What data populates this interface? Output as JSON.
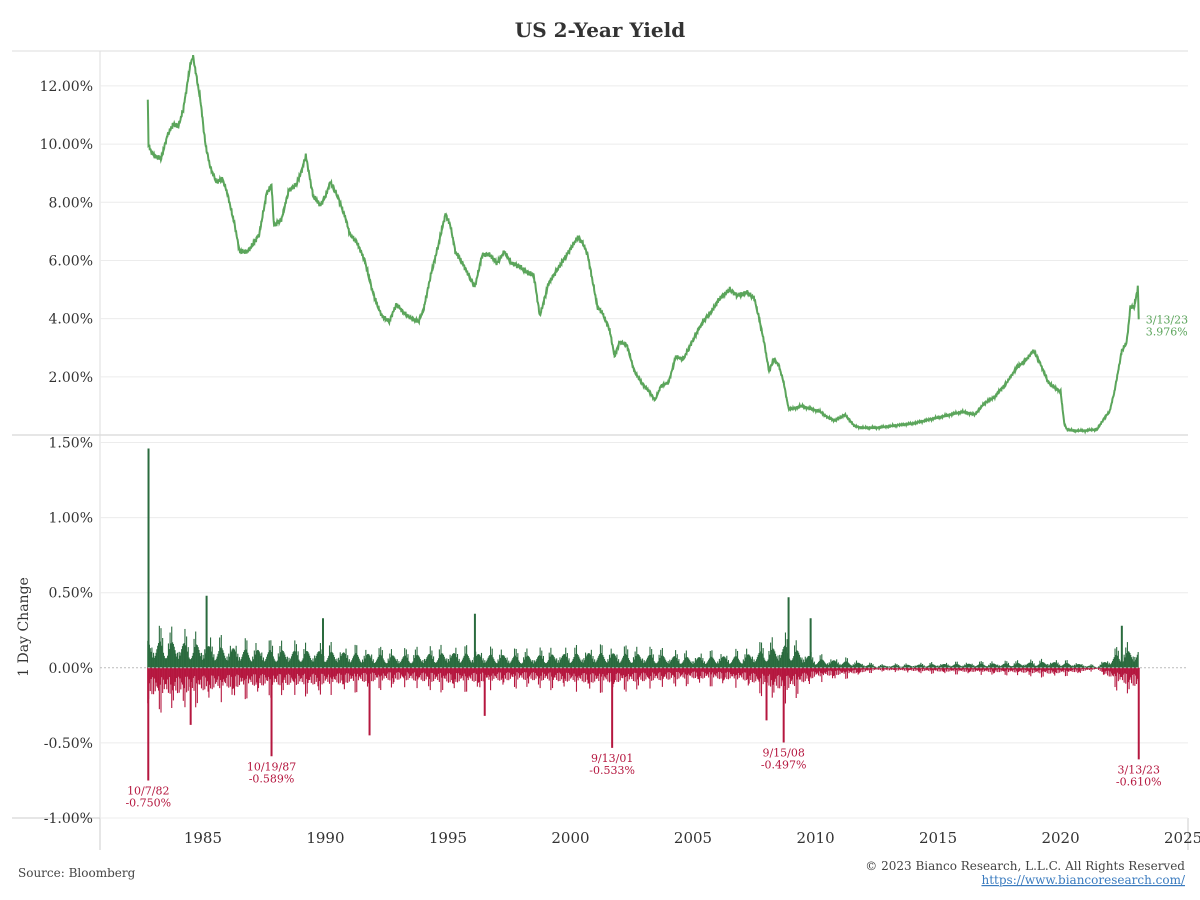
{
  "colors": {
    "yield_line": "#5ba55b",
    "positive_bar": "#2a6b3e",
    "negative_bar": "#b5173f",
    "grid": "#ececec",
    "axis": "#cfcfcf",
    "link": "#3a7bbf"
  },
  "footer": {
    "source": "Source: Bloomberg",
    "copyright": "© 2023 Bianco Research, L.L.C. All Rights Reserved",
    "link": "https://www.biancoresearch.com/"
  },
  "chart_data": [
    {
      "type": "line",
      "title": "US 2-Year Yield",
      "xlabel": "",
      "ylabel": "",
      "y_unit": "%",
      "ylim": [
        0,
        13.2
      ],
      "xlim": [
        1980.8,
        2025.2
      ],
      "y_ticks": [
        "2.00%",
        "4.00%",
        "6.00%",
        "8.00%",
        "10.00%",
        "12.00%"
      ],
      "x_ticks": [
        "1985",
        "1990",
        "1995",
        "2000",
        "2005",
        "2010",
        "2015",
        "2020",
        "2025"
      ],
      "grid": true,
      "series": [
        {
          "x": [
            1982.75,
            1982.78,
            1982.85,
            1983.0,
            1983.3,
            1983.55,
            1983.8,
            1984.0,
            1984.2,
            1984.5,
            1984.6,
            1984.9,
            1985.1,
            1985.3,
            1985.55,
            1985.8,
            1986.0,
            1986.3,
            1986.5,
            1986.8,
            1987.0,
            1987.3,
            1987.6,
            1987.8,
            1987.9,
            1988.2,
            1988.5,
            1988.8,
            1989.0,
            1989.2,
            1989.5,
            1989.8,
            1990.0,
            1990.2,
            1990.5,
            1990.8,
            1991.0,
            1991.3,
            1991.6,
            1991.9,
            1992.1,
            1992.3,
            1992.6,
            1992.9,
            1993.2,
            1993.5,
            1993.8,
            1994.0,
            1994.3,
            1994.6,
            1994.9,
            1995.1,
            1995.3,
            1995.6,
            1995.9,
            1996.1,
            1996.4,
            1996.7,
            1997.0,
            1997.3,
            1997.6,
            1997.9,
            1998.2,
            1998.5,
            1998.75,
            1998.85,
            1999.1,
            1999.4,
            1999.7,
            2000.0,
            2000.3,
            2000.5,
            2000.7,
            2000.9,
            2001.1,
            2001.3,
            2001.6,
            2001.8,
            2002.0,
            2002.3,
            2002.6,
            2002.9,
            2003.2,
            2003.45,
            2003.7,
            2004.0,
            2004.3,
            2004.6,
            2004.9,
            2005.2,
            2005.5,
            2005.8,
            2006.1,
            2006.5,
            2006.8,
            2007.2,
            2007.5,
            2007.7,
            2007.9,
            2008.1,
            2008.3,
            2008.5,
            2008.7,
            2008.9,
            2009.1,
            2009.4,
            2009.8,
            2010.2,
            2010.5,
            2010.8,
            2011.2,
            2011.6,
            2011.9,
            2012.5,
            2013.0,
            2013.5,
            2014.0,
            2014.5,
            2015.0,
            2015.5,
            2016.0,
            2016.5,
            2016.9,
            2017.3,
            2017.8,
            2018.2,
            2018.6,
            2018.9,
            2019.2,
            2019.5,
            2019.8,
            2020.0,
            2020.15,
            2020.25,
            2020.5,
            2021.0,
            2021.5,
            2021.8,
            2022.0,
            2022.2,
            2022.5,
            2022.7,
            2022.85,
            2023.0,
            2023.1,
            2023.15,
            2023.19
          ],
          "y": [
            11.5,
            10.0,
            9.8,
            9.6,
            9.5,
            10.3,
            10.7,
            10.6,
            11.2,
            12.8,
            13.0,
            11.5,
            10.0,
            9.2,
            8.7,
            8.8,
            8.3,
            7.2,
            6.3,
            6.3,
            6.5,
            6.9,
            8.3,
            8.6,
            7.2,
            7.4,
            8.4,
            8.6,
            9.0,
            9.6,
            8.2,
            7.9,
            8.2,
            8.7,
            8.2,
            7.5,
            6.9,
            6.6,
            6.0,
            5.0,
            4.5,
            4.1,
            3.9,
            4.5,
            4.2,
            4.0,
            3.9,
            4.3,
            5.5,
            6.5,
            7.6,
            7.2,
            6.3,
            5.9,
            5.4,
            5.1,
            6.2,
            6.2,
            5.9,
            6.3,
            5.9,
            5.8,
            5.6,
            5.5,
            4.1,
            4.4,
            5.2,
            5.6,
            6.0,
            6.4,
            6.8,
            6.6,
            6.2,
            5.3,
            4.4,
            4.2,
            3.6,
            2.7,
            3.2,
            3.1,
            2.2,
            1.8,
            1.5,
            1.2,
            1.7,
            1.8,
            2.7,
            2.6,
            3.1,
            3.6,
            4.0,
            4.3,
            4.7,
            5.0,
            4.8,
            4.9,
            4.7,
            4.0,
            3.2,
            2.2,
            2.6,
            2.4,
            1.8,
            0.9,
            0.9,
            1.0,
            0.9,
            0.8,
            0.6,
            0.5,
            0.7,
            0.3,
            0.25,
            0.25,
            0.3,
            0.35,
            0.4,
            0.5,
            0.6,
            0.7,
            0.8,
            0.7,
            1.1,
            1.3,
            1.8,
            2.3,
            2.6,
            2.9,
            2.4,
            1.8,
            1.6,
            1.5,
            0.4,
            0.2,
            0.15,
            0.15,
            0.2,
            0.6,
            0.8,
            1.5,
            2.9,
            3.2,
            4.4,
            4.4,
            4.8,
            5.1,
            3.976
          ]
        }
      ],
      "annotation": {
        "date": "3/13/23",
        "value": "3.976%"
      }
    },
    {
      "type": "bar",
      "title": "",
      "xlabel": "",
      "ylabel": "1 Day Change",
      "y_unit": "%",
      "ylim": [
        -1.0,
        1.55
      ],
      "y_ticks": [
        "-1.00%",
        "-0.50%",
        "0.00%",
        "0.50%",
        "1.00%",
        "1.50%"
      ],
      "grid": true,
      "envelope": {
        "x": [
          1982.75,
          1984.0,
          1985.5,
          1987.0,
          1990.0,
          1993.0,
          1995.0,
          1998.0,
          2001.0,
          2003.0,
          2005.0,
          2007.0,
          2008.8,
          2010.0,
          2011.5,
          2012.5,
          2015.0,
          2018.0,
          2019.5,
          2020.5,
          2021.5,
          2022.3,
          2023.2
        ],
        "magnitude": [
          0.18,
          0.17,
          0.14,
          0.12,
          0.11,
          0.08,
          0.1,
          0.08,
          0.1,
          0.09,
          0.07,
          0.08,
          0.15,
          0.06,
          0.04,
          0.015,
          0.025,
          0.03,
          0.04,
          0.03,
          0.01,
          0.09,
          0.13
        ]
      },
      "spikes": [
        {
          "x": 1982.78,
          "value": 1.46
        },
        {
          "x": 1985.15,
          "value": 0.48
        },
        {
          "x": 1989.9,
          "value": 0.33
        },
        {
          "x": 1996.1,
          "value": 0.36
        },
        {
          "x": 2008.9,
          "value": 0.47
        },
        {
          "x": 2009.8,
          "value": 0.33
        },
        {
          "x": 2022.5,
          "value": 0.28
        },
        {
          "x": 1984.5,
          "value": -0.38
        },
        {
          "x": 1991.8,
          "value": -0.45
        },
        {
          "x": 1996.5,
          "value": -0.32
        },
        {
          "x": 2008.0,
          "value": -0.35
        },
        {
          "x": 1982.77,
          "value": -0.75
        },
        {
          "x": 1987.8,
          "value": -0.589
        },
        {
          "x": 2001.7,
          "value": -0.533
        },
        {
          "x": 2008.7,
          "value": -0.497
        },
        {
          "x": 2023.19,
          "value": -0.61
        }
      ],
      "annotations": [
        {
          "x": 1982.77,
          "date": "10/7/82",
          "value": "-0.750%"
        },
        {
          "x": 1987.8,
          "date": "10/19/87",
          "value": "-0.589%"
        },
        {
          "x": 2001.7,
          "date": "9/13/01",
          "value": "-0.533%"
        },
        {
          "x": 2008.7,
          "date": "9/15/08",
          "value": "-0.497%"
        },
        {
          "x": 2023.19,
          "date": "3/13/23",
          "value": "-0.610%"
        }
      ]
    }
  ]
}
